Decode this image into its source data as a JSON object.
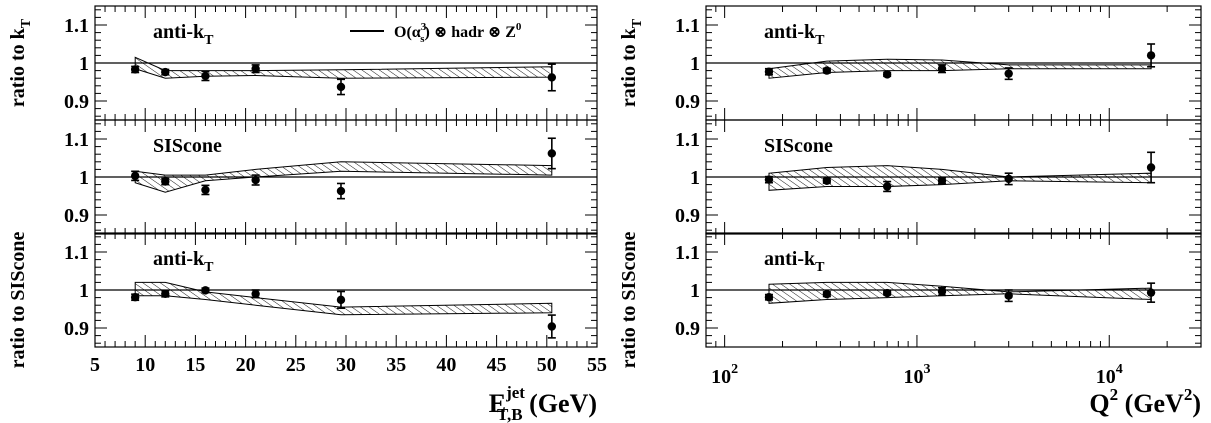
{
  "chart_data": [
    {
      "type": "scatter",
      "xlabel": "E",
      "xlabel_sup": "jet",
      "xlabel_sub": "T,B",
      "xlabel_unit": "(GeV)",
      "xscale": "linear",
      "xlim": [
        5,
        55
      ],
      "xticks": [
        5,
        10,
        15,
        20,
        25,
        30,
        35,
        40,
        45,
        50,
        55
      ],
      "xtick_labels": [
        "5",
        "10",
        "15",
        "20",
        "25",
        "30",
        "35",
        "40",
        "45",
        "50",
        "55"
      ],
      "legend": {
        "label_main": "O(α",
        "label_sup": "3",
        "label_sub": "s",
        "label_rest": ") ⊗ hadr ⊗ Z",
        "label_sup2": "0"
      },
      "panels": [
        {
          "label_main": "anti-k",
          "label_sub": "T",
          "ylim": [
            0.85,
            1.15
          ],
          "yticks": [
            0.9,
            1,
            1.1
          ],
          "ytick_labels": [
            "0.9",
            "1",
            "1.1"
          ],
          "ylabel_main": "ratio to k",
          "ylabel_sub": "T",
          "x": [
            9,
            12,
            16,
            21,
            29.5,
            50.5
          ],
          "y": [
            0.983,
            0.976,
            0.966,
            0.985,
            0.937,
            0.962
          ],
          "yerr": [
            0.008,
            0.007,
            0.012,
            0.01,
            0.02,
            0.035
          ],
          "band_lower": [
            0.985,
            0.96,
            0.965,
            0.967,
            0.96,
            0.963
          ],
          "band_upper": [
            1.015,
            0.98,
            0.98,
            0.98,
            0.982,
            0.99
          ]
        },
        {
          "label_main": "SIScone",
          "label_sub": "",
          "ylim": [
            0.85,
            1.15
          ],
          "yticks": [
            0.9,
            1,
            1.1
          ],
          "ytick_labels": [
            "0.9",
            "1",
            "1.1"
          ],
          "x": [
            9,
            12,
            16,
            21,
            29.5,
            50.5
          ],
          "y": [
            1.003,
            0.988,
            0.966,
            0.992,
            0.963,
            1.062
          ],
          "yerr": [
            0.012,
            0.008,
            0.012,
            0.013,
            0.02,
            0.04
          ],
          "band_lower": [
            0.985,
            0.96,
            0.99,
            1.0,
            1.015,
            1.005
          ],
          "band_upper": [
            1.015,
            1.005,
            1.005,
            1.02,
            1.04,
            1.03
          ]
        },
        {
          "label_main": "anti-k",
          "label_sub": "T",
          "ylim": [
            0.85,
            1.15
          ],
          "yticks": [
            0.9,
            1,
            1.1
          ],
          "ytick_labels": [
            "0.9",
            "1",
            "1.1"
          ],
          "ylabel_main": "ratio to SIScone",
          "ylabel_sub": "",
          "x": [
            9,
            12,
            16,
            21,
            29.5,
            50.5
          ],
          "y": [
            0.981,
            0.99,
            0.999,
            0.99,
            0.974,
            0.904
          ],
          "yerr": [
            0.008,
            0.008,
            0.006,
            0.01,
            0.022,
            0.03
          ],
          "band_lower": [
            0.985,
            0.985,
            0.975,
            0.96,
            0.935,
            0.94
          ],
          "band_upper": [
            1.02,
            1.02,
            0.995,
            0.98,
            0.955,
            0.965
          ]
        }
      ]
    },
    {
      "type": "scatter",
      "xlabel": "Q",
      "xlabel_sup": "2",
      "xlabel_unit": "(GeV",
      "xlabel_unit_sup": "2",
      "xlabel_unit_end": ")",
      "xscale": "log",
      "xlim": [
        80,
        30000
      ],
      "xticks": [
        100,
        1000,
        10000
      ],
      "xtick_labels": [
        "10",
        "10",
        "10"
      ],
      "xtick_exponents": [
        "2",
        "3",
        "4"
      ],
      "panels": [
        {
          "label_main": "anti-k",
          "label_sub": "T",
          "ylim": [
            0.85,
            1.15
          ],
          "yticks": [
            0.9,
            1,
            1.1
          ],
          "ytick_labels": [
            "0.9",
            "1",
            "1.1"
          ],
          "ylabel_main": "ratio to k",
          "ylabel_sub": "T",
          "x": [
            170,
            340,
            700,
            1350,
            3000,
            16500
          ],
          "y": [
            0.977,
            0.98,
            0.97,
            0.985,
            0.972,
            1.02
          ],
          "yerr": [
            0.008,
            0.006,
            0.005,
            0.01,
            0.015,
            0.03
          ],
          "band_lower": [
            0.96,
            0.975,
            0.98,
            0.98,
            0.985,
            0.985
          ],
          "band_upper": [
            0.985,
            1.005,
            1.01,
            1.008,
            0.995,
            0.995
          ]
        },
        {
          "label_main": "SIScone",
          "label_sub": "",
          "ylim": [
            0.85,
            1.15
          ],
          "yticks": [
            0.9,
            1,
            1.1
          ],
          "ytick_labels": [
            "0.9",
            "1",
            "1.1"
          ],
          "x": [
            170,
            340,
            700,
            1350,
            3000,
            16500
          ],
          "y": [
            0.993,
            0.99,
            0.975,
            0.99,
            0.995,
            1.025
          ],
          "yerr": [
            0.008,
            0.006,
            0.013,
            0.008,
            0.015,
            0.04
          ],
          "band_lower": [
            0.965,
            0.975,
            0.975,
            0.98,
            0.99,
            0.985
          ],
          "band_upper": [
            1.01,
            1.025,
            1.03,
            1.02,
            1.0,
            1.01
          ]
        },
        {
          "label_main": "anti-k",
          "label_sub": "T",
          "ylim": [
            0.85,
            1.15
          ],
          "yticks": [
            0.9,
            1,
            1.1
          ],
          "ytick_labels": [
            "0.9",
            "1",
            "1.1"
          ],
          "ylabel_main": "ratio to SIScone",
          "ylabel_sub": "",
          "x": [
            170,
            340,
            700,
            1350,
            3000,
            16500
          ],
          "y": [
            0.981,
            0.989,
            0.992,
            0.996,
            0.985,
            0.993
          ],
          "yerr": [
            0.007,
            0.006,
            0.005,
            0.01,
            0.015,
            0.025
          ],
          "band_lower": [
            0.965,
            0.975,
            0.98,
            0.985,
            0.99,
            0.975
          ],
          "band_upper": [
            1.015,
            1.02,
            1.02,
            1.01,
            0.995,
            1.005
          ]
        }
      ]
    }
  ]
}
